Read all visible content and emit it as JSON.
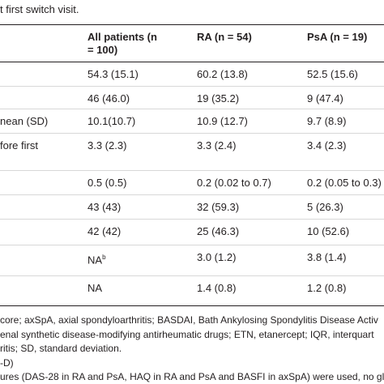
{
  "caption": "t first switch visit.",
  "table": {
    "header": [
      "All patients (n = 100)",
      "RA (n = 54)",
      "PsA (n = 19)"
    ],
    "row_labels": [
      null,
      null,
      "nean (SD)",
      "fore first",
      null,
      null,
      null,
      null,
      null
    ],
    "rows": [
      [
        "54.3 (15.1)",
        "60.2 (13.8)",
        "52.5 (15.6)"
      ],
      [
        "46 (46.0)",
        "19 (35.2)",
        "9 (47.4)"
      ],
      [
        "10.1(10.7)",
        "10.9 (12.7)",
        "9.7 (8.9)"
      ],
      [
        "3.3 (2.3)",
        "3.3 (2.4)",
        "3.4 (2.3)"
      ],
      [
        "0.5 (0.5)",
        "0.2 (0.02 to 0.7)",
        "0.2 (0.05 to 0.3)"
      ],
      [
        "43 (43)",
        "32 (59.3)",
        "5 (26.3)"
      ],
      [
        "42 (42)",
        "25 (46.3)",
        "10 (52.6)"
      ],
      [
        "NA",
        "3.0 (1.2)",
        "3.8 (1.4)"
      ],
      [
        "NA",
        "1.4 (0.8)",
        "1.2 (0.8)"
      ]
    ],
    "superscript": {
      "row": 7,
      "col": 0,
      "text": "b"
    }
  },
  "footnotes": [
    "core; axSpA, axial spondyloarthritis; BASDAI, Bath Ankylosing Spondylitis Disease Activ",
    "enal synthetic disease-modifying antirheumatic drugs; ETN, etanercept; IQR, interquart",
    "ritis; SD, standard deviation.",
    "-D)",
    "ures (DAS-28 in RA and PsA, HAQ in RA and PsA and BASFI in axSpA) were used, no glo"
  ]
}
